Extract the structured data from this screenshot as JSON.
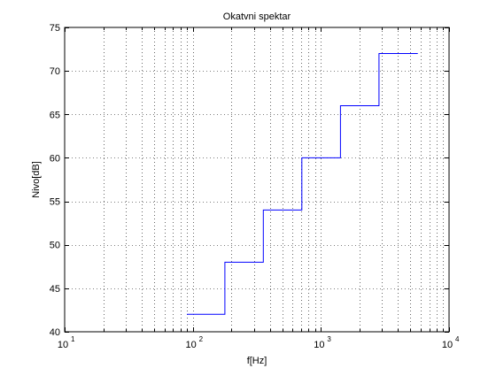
{
  "chart_data": {
    "type": "line",
    "title": "Okatvni spektar",
    "xlabel": "f[Hz]",
    "ylabel": "Nivo[dB]",
    "x_scale": "log",
    "xlim": [
      10,
      10000
    ],
    "ylim": [
      40,
      75
    ],
    "x_ticks": [
      {
        "base": "10",
        "exp": "1",
        "value": 10
      },
      {
        "base": "10",
        "exp": "2",
        "value": 100
      },
      {
        "base": "10",
        "exp": "3",
        "value": 1000
      },
      {
        "base": "10",
        "exp": "4",
        "value": 10000
      }
    ],
    "y_ticks": [
      "40",
      "45",
      "50",
      "55",
      "60",
      "65",
      "70",
      "75"
    ],
    "grid": "dotted",
    "series": [
      {
        "color": "#0000ff",
        "step": "post",
        "x": [
          90,
          178,
          355,
          710,
          1420,
          2840,
          5700
        ],
        "y": [
          42,
          48,
          54,
          60,
          66,
          72,
          72
        ]
      }
    ]
  }
}
